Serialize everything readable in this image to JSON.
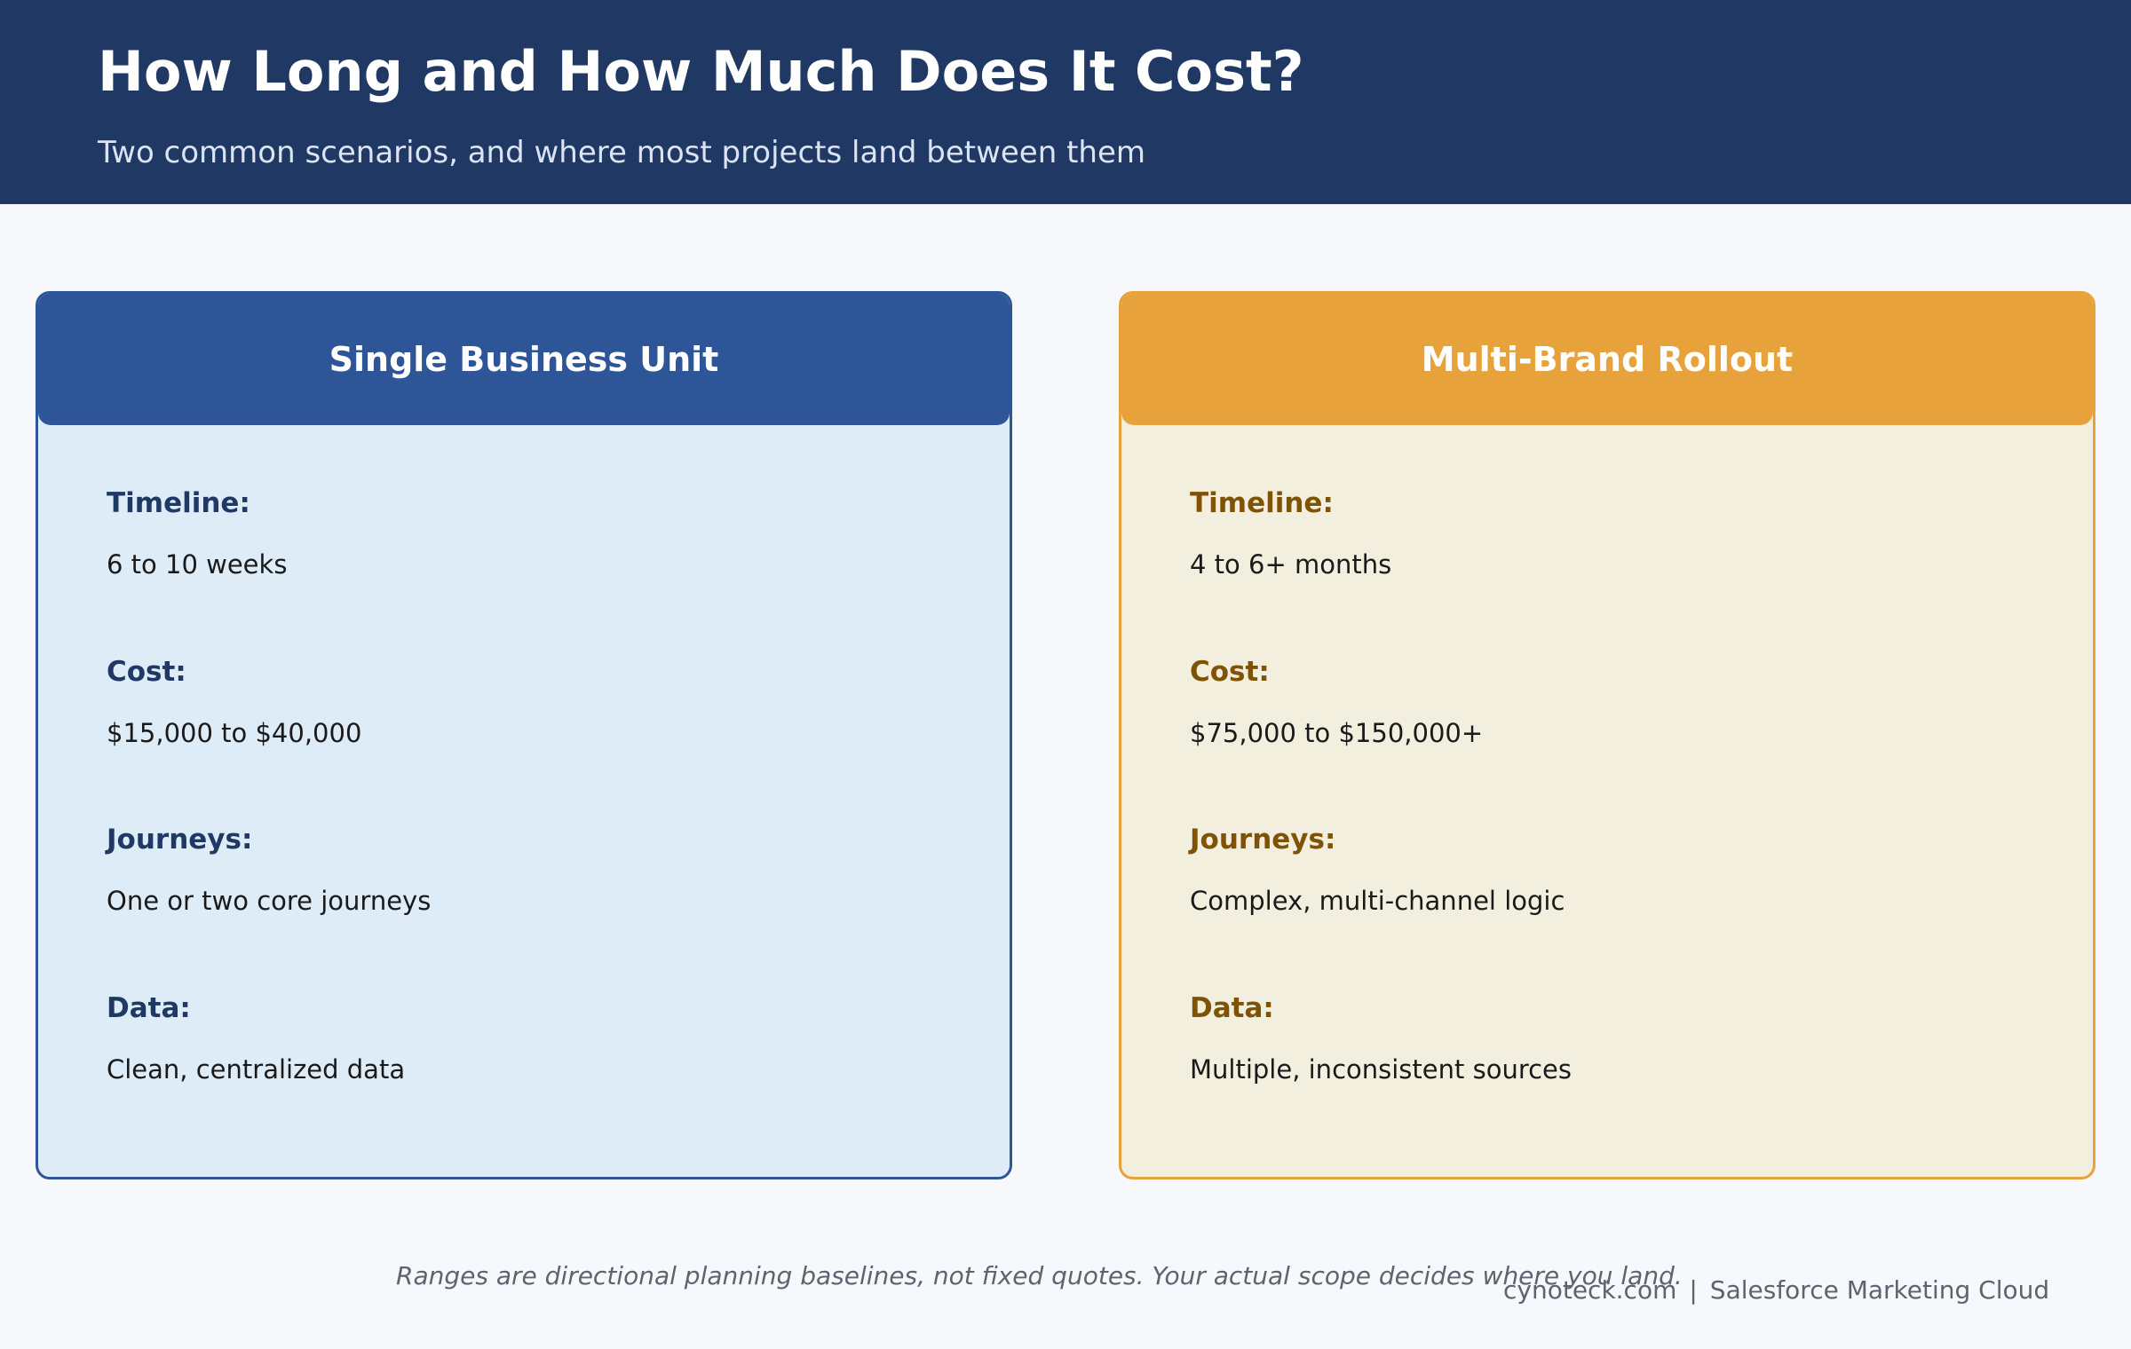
{
  "header": {
    "title": "How Long and How Much Does It Cost?",
    "subtitle": "Two common scenarios, and where most projects land between them"
  },
  "colors": {
    "header_bg": "#203864",
    "single_accent": "#2d5597",
    "single_bg": "#deecf7",
    "multi_accent": "#e8a23c",
    "multi_bg": "#f2efdf"
  },
  "cards": [
    {
      "title": "Single Business Unit",
      "items": [
        {
          "label": "Timeline:",
          "value": "6 to 10 weeks"
        },
        {
          "label": "Cost:",
          "value": "$15,000 to $40,000"
        },
        {
          "label": "Journeys:",
          "value": "One or two core journeys"
        },
        {
          "label": "Data:",
          "value": "Clean, centralized data"
        }
      ]
    },
    {
      "title": "Multi-Brand Rollout",
      "items": [
        {
          "label": "Timeline:",
          "value": "4 to 6+ months"
        },
        {
          "label": "Cost:",
          "value": "$75,000 to $150,000+"
        },
        {
          "label": "Journeys:",
          "value": "Complex, multi-channel logic"
        },
        {
          "label": "Data:",
          "value": "Multiple, inconsistent sources"
        }
      ]
    }
  ],
  "footer": {
    "note": "Ranges are directional planning baselines, not fixed quotes. Your actual scope decides where you land.",
    "site": "cynoteck.com",
    "separator": "|",
    "product": "Salesforce Marketing Cloud"
  }
}
